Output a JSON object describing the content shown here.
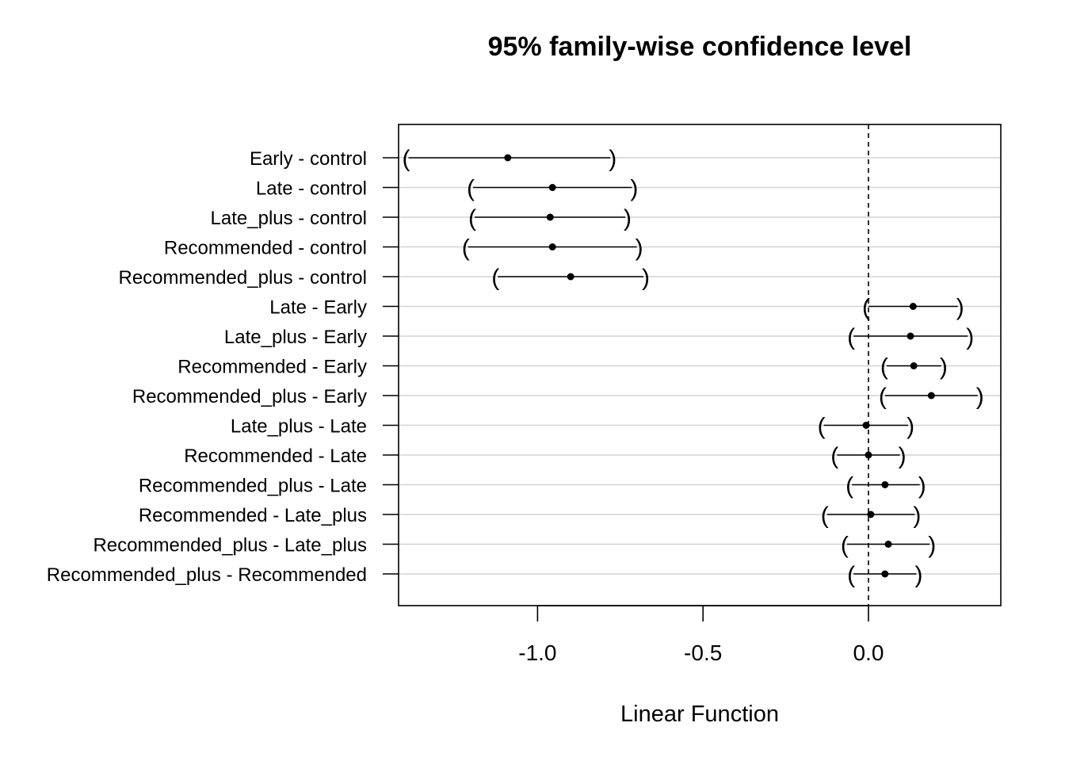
{
  "chart_data": {
    "type": "errorbar",
    "title": "95% family-wise confidence level",
    "xlabel": "Linear Function",
    "ylabel": "",
    "xlim": [
      -1.42,
      0.4
    ],
    "xticks": [
      -1.0,
      -0.5,
      0.0
    ],
    "xtick_labels": [
      "-1.0",
      "-0.5",
      "0.0"
    ],
    "reference_line": 0.0,
    "grid": "horizontal",
    "comparisons": [
      {
        "label": "Early - control",
        "estimate": -1.09,
        "lower": -1.39,
        "upper": -0.78
      },
      {
        "label": "Late - control",
        "estimate": -0.955,
        "lower": -1.195,
        "upper": -0.715
      },
      {
        "label": "Late_plus - control",
        "estimate": -0.962,
        "lower": -1.19,
        "upper": -0.735
      },
      {
        "label": "Recommended - control",
        "estimate": -0.955,
        "lower": -1.21,
        "upper": -0.7
      },
      {
        "label": "Recommended_plus - control",
        "estimate": -0.9,
        "lower": -1.12,
        "upper": -0.68
      },
      {
        "label": "Late - Early",
        "estimate": 0.135,
        "lower": 0.0,
        "upper": 0.27
      },
      {
        "label": "Late_plus - Early",
        "estimate": 0.127,
        "lower": -0.045,
        "upper": 0.3
      },
      {
        "label": "Recommended - Early",
        "estimate": 0.137,
        "lower": 0.055,
        "upper": 0.22
      },
      {
        "label": "Recommended_plus - Early",
        "estimate": 0.19,
        "lower": 0.05,
        "upper": 0.33
      },
      {
        "label": "Late_plus - Late",
        "estimate": -0.007,
        "lower": -0.135,
        "upper": 0.12
      },
      {
        "label": "Recommended - Late",
        "estimate": 0.0,
        "lower": -0.095,
        "upper": 0.095
      },
      {
        "label": "Recommended_plus - Late",
        "estimate": 0.05,
        "lower": -0.05,
        "upper": 0.155
      },
      {
        "label": "Recommended - Late_plus",
        "estimate": 0.007,
        "lower": -0.125,
        "upper": 0.14
      },
      {
        "label": "Recommended_plus - Late_plus",
        "estimate": 0.06,
        "lower": -0.065,
        "upper": 0.185
      },
      {
        "label": "Recommended_plus - Recommended",
        "estimate": 0.05,
        "lower": -0.045,
        "upper": 0.145
      }
    ]
  }
}
